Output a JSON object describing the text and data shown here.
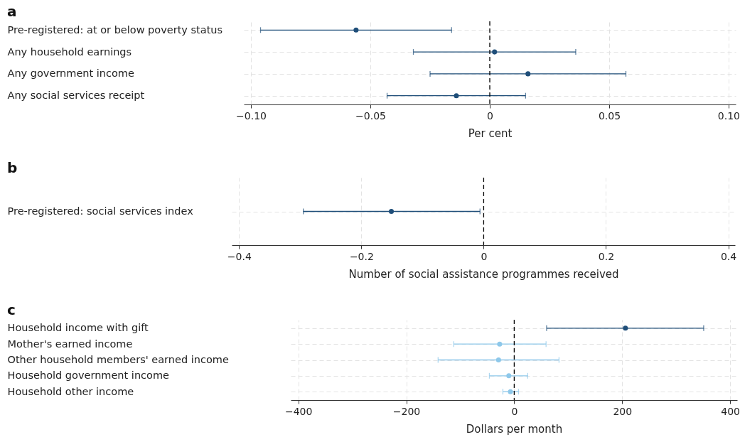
{
  "chart_data": [
    {
      "type": "scatter",
      "title": "a",
      "xlabel": "Per cent",
      "orientation": "horizontal",
      "marker": "circle",
      "grid": true,
      "categories": [
        "Pre-registered: at or below poverty status",
        "Any household earnings",
        "Any government income",
        "Any social services receipt"
      ],
      "series": [
        {
          "color": "#1f4e79",
          "values": [
            -0.056,
            0.002,
            0.016,
            -0.014
          ],
          "errors": [
            [
              -0.096,
              -0.016
            ],
            [
              -0.032,
              0.036
            ],
            [
              -0.025,
              0.057
            ],
            [
              -0.043,
              0.015
            ]
          ]
        }
      ],
      "xlim": [
        -0.103,
        0.103
      ],
      "xticks": [
        {
          "value": -0.1,
          "label": "−0.10"
        },
        {
          "value": -0.05,
          "label": "−0.05"
        },
        0,
        {
          "value": 0.05,
          "label": "0.05"
        },
        {
          "value": 0.1,
          "label": "0.10"
        }
      ],
      "ref_lines": [
        {
          "axis": "x",
          "value": 0,
          "color": "#000000",
          "line_style": "dashed"
        }
      ]
    },
    {
      "type": "scatter",
      "title": "b",
      "xlabel": "Number of social assistance programmes received",
      "orientation": "horizontal",
      "marker": "circle",
      "grid": true,
      "categories": [
        "Pre-registered: social services index"
      ],
      "series": [
        {
          "color": "#1f4e79",
          "values": [
            -0.151
          ],
          "errors": [
            [
              -0.295,
              -0.006
            ]
          ]
        }
      ],
      "xlim": [
        -0.412,
        0.411
      ],
      "xticks": [
        {
          "value": -0.4,
          "label": "−0.4"
        },
        {
          "value": -0.2,
          "label": "−0.2"
        },
        0,
        0.2,
        0.4
      ],
      "ref_lines": [
        {
          "axis": "x",
          "value": 0,
          "color": "#000000",
          "line_style": "dashed"
        }
      ]
    },
    {
      "type": "scatter",
      "title": "c",
      "xlabel": "Dollars per month",
      "orientation": "horizontal",
      "marker": "circle",
      "grid": true,
      "categories": [
        "Household income with gift",
        "Mother's earned income",
        "Other household members' earned income",
        "Household government income",
        "Household other income"
      ],
      "series": [
        {
          "color": "#1f4e79",
          "values": [
            206,
            null,
            null,
            null,
            null
          ],
          "errors": [
            [
              60,
              351
            ],
            null,
            null,
            null,
            null
          ]
        },
        {
          "color": "#8ec8ea",
          "values": [
            null,
            -27,
            -29,
            -10,
            -7
          ],
          "errors": [
            null,
            [
              -112,
              59
            ],
            [
              -141,
              83
            ],
            [
              -46,
              25
            ],
            [
              -21,
              8
            ]
          ]
        }
      ],
      "xlim": [
        -414,
        413
      ],
      "xticks": [
        {
          "value": -400,
          "label": "−400"
        },
        {
          "value": -200,
          "label": "−200"
        },
        0,
        200,
        400
      ],
      "ref_lines": [
        {
          "axis": "x",
          "value": 0,
          "color": "#000000",
          "line_style": "dashed"
        }
      ]
    }
  ]
}
